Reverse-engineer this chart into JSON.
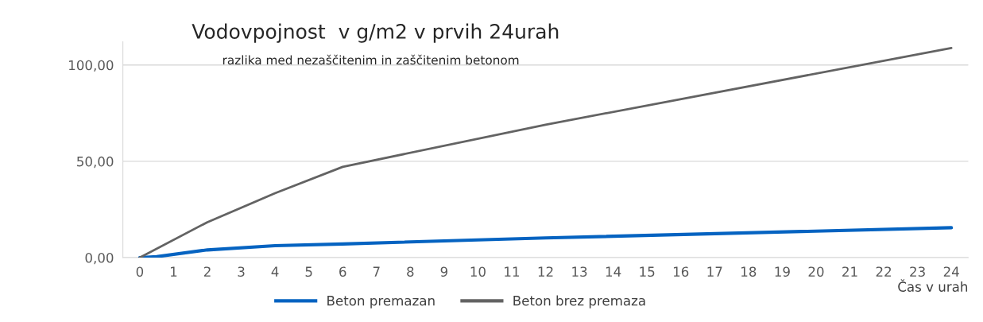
{
  "chart_data": {
    "type": "line",
    "title": "Vodovpojnost  v g/m2 v prvih 24urah",
    "subtitle": "razlika med nezaščitenim in zaščitenim betonom",
    "xlabel": "Čas v urah",
    "series": [
      {
        "name": "Beton premazan",
        "color": "#0563c1",
        "x": [
          0,
          0.5,
          2,
          4,
          6,
          12,
          24
        ],
        "values": [
          0,
          0.5,
          4.0,
          6.2,
          7.1,
          10.2,
          15.5
        ]
      },
      {
        "name": "Beton brez premaza",
        "color": "#636363",
        "x": [
          0,
          2,
          4,
          6,
          12,
          24
        ],
        "values": [
          0,
          18.4,
          33.4,
          47.1,
          69.0,
          108.8
        ]
      }
    ],
    "xlim": [
      -0.5,
      24.5
    ],
    "xticks": [
      0,
      1,
      2,
      3,
      4,
      5,
      6,
      7,
      8,
      9,
      10,
      11,
      12,
      13,
      14,
      15,
      16,
      17,
      18,
      19,
      20,
      21,
      22,
      23,
      24
    ],
    "ylim": [
      0,
      112
    ],
    "yticks": [
      {
        "value": 0,
        "label": "0,00"
      },
      {
        "value": 50,
        "label": "50,00"
      },
      {
        "value": 100,
        "label": "100,00"
      }
    ],
    "grid": "y",
    "legend": "bottom",
    "marker": "none",
    "line_style": "solid"
  }
}
